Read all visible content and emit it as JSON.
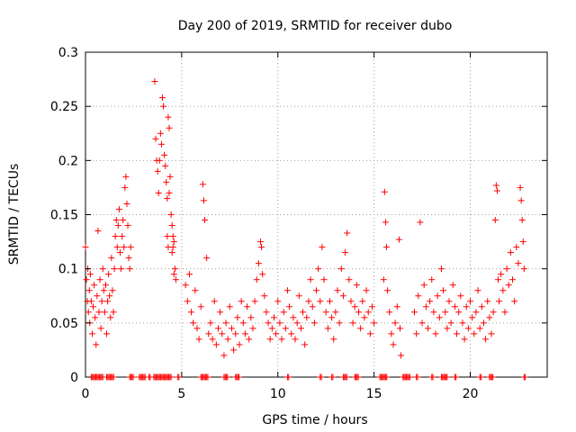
{
  "chart_data": {
    "type": "scatter",
    "title": "Day 200 of 2019, SRMTID for receiver dubo",
    "xlabel": "GPS time / hours",
    "ylabel": "SRMTID / TECUs",
    "xlim": [
      0,
      24
    ],
    "ylim": [
      0,
      0.3
    ],
    "xticks": [
      0,
      5,
      10,
      15,
      20
    ],
    "xtick_labels": [
      "0",
      "5",
      "10",
      "15",
      "20"
    ],
    "yticks": [
      0,
      0.05,
      0.1,
      0.15,
      0.2,
      0.25,
      0.3
    ],
    "ytick_labels": [
      "0",
      "0.05",
      "0.1",
      "0.15",
      "0.2",
      "0.25",
      "0.3"
    ],
    "grid": true,
    "marker": "plus",
    "color": "#ff0000",
    "series": [
      {
        "name": "SRMTID",
        "points": [
          [
            0.0,
            0.12
          ],
          [
            0.05,
            0.09
          ],
          [
            0.1,
            0.07
          ],
          [
            0.12,
            0.1
          ],
          [
            0.15,
            0.06
          ],
          [
            0.2,
            0.08
          ],
          [
            0.22,
            0.05
          ],
          [
            0.25,
            0.095
          ],
          [
            0.3,
            0.07
          ],
          [
            0.35,
            0.04
          ],
          [
            0.4,
            0.065
          ],
          [
            0.45,
            0.085
          ],
          [
            0.5,
            0.055
          ],
          [
            0.55,
            0.03
          ],
          [
            0.6,
            0.075
          ],
          [
            0.65,
            0.135
          ],
          [
            0.7,
            0.06
          ],
          [
            0.75,
            0.09
          ],
          [
            0.8,
            0.045
          ],
          [
            0.85,
            0.07
          ],
          [
            0.9,
            0.1
          ],
          [
            0.95,
            0.08
          ],
          [
            1.0,
            0.06
          ],
          [
            1.05,
            0.085
          ],
          [
            1.1,
            0.04
          ],
          [
            1.15,
            0.07
          ],
          [
            1.2,
            0.095
          ],
          [
            1.25,
            0.075
          ],
          [
            1.3,
            0.055
          ],
          [
            1.35,
            0.11
          ],
          [
            1.4,
            0.08
          ],
          [
            1.45,
            0.06
          ],
          [
            1.5,
            0.1
          ],
          [
            1.55,
            0.13
          ],
          [
            1.6,
            0.145
          ],
          [
            1.65,
            0.12
          ],
          [
            1.7,
            0.14
          ],
          [
            1.75,
            0.155
          ],
          [
            1.8,
            0.115
          ],
          [
            1.85,
            0.1
          ],
          [
            1.9,
            0.13
          ],
          [
            1.95,
            0.145
          ],
          [
            2.0,
            0.12
          ],
          [
            2.05,
            0.175
          ],
          [
            2.1,
            0.185
          ],
          [
            2.15,
            0.16
          ],
          [
            2.2,
            0.14
          ],
          [
            2.25,
            0.11
          ],
          [
            2.3,
            0.1
          ],
          [
            2.35,
            0.12
          ],
          [
            3.6,
            0.273
          ],
          [
            3.65,
            0.22
          ],
          [
            3.7,
            0.2
          ],
          [
            3.75,
            0.19
          ],
          [
            3.8,
            0.17
          ],
          [
            3.85,
            0.2
          ],
          [
            3.9,
            0.225
          ],
          [
            3.95,
            0.215
          ],
          [
            4.0,
            0.258
          ],
          [
            4.05,
            0.25
          ],
          [
            4.1,
            0.205
          ],
          [
            4.15,
            0.195
          ],
          [
            4.2,
            0.18
          ],
          [
            4.25,
            0.165
          ],
          [
            4.3,
            0.24
          ],
          [
            4.35,
            0.23
          ],
          [
            4.4,
            0.185
          ],
          [
            4.45,
            0.15
          ],
          [
            4.5,
            0.14
          ],
          [
            4.55,
            0.13
          ],
          [
            4.6,
            0.125
          ],
          [
            4.65,
            0.1
          ],
          [
            4.7,
            0.09
          ],
          [
            4.3,
            0.12
          ],
          [
            4.25,
            0.13
          ],
          [
            4.35,
            0.17
          ],
          [
            4.5,
            0.115
          ],
          [
            4.55,
            0.12
          ],
          [
            4.6,
            0.095
          ],
          [
            5.2,
            0.085
          ],
          [
            5.3,
            0.07
          ],
          [
            5.4,
            0.095
          ],
          [
            5.5,
            0.06
          ],
          [
            5.6,
            0.05
          ],
          [
            5.7,
            0.08
          ],
          [
            5.8,
            0.045
          ],
          [
            5.9,
            0.035
          ],
          [
            6.0,
            0.065
          ],
          [
            6.1,
            0.178
          ],
          [
            6.15,
            0.163
          ],
          [
            6.2,
            0.145
          ],
          [
            6.3,
            0.11
          ],
          [
            6.4,
            0.04
          ],
          [
            6.5,
            0.05
          ],
          [
            6.6,
            0.035
          ],
          [
            6.7,
            0.07
          ],
          [
            6.8,
            0.03
          ],
          [
            6.9,
            0.045
          ],
          [
            7.0,
            0.06
          ],
          [
            7.1,
            0.04
          ],
          [
            7.2,
            0.02
          ],
          [
            7.3,
            0.05
          ],
          [
            7.4,
            0.035
          ],
          [
            7.5,
            0.065
          ],
          [
            7.6,
            0.045
          ],
          [
            7.7,
            0.025
          ],
          [
            7.8,
            0.04
          ],
          [
            7.9,
            0.055
          ],
          [
            8.0,
            0.03
          ],
          [
            8.1,
            0.07
          ],
          [
            8.2,
            0.05
          ],
          [
            8.3,
            0.04
          ],
          [
            8.4,
            0.065
          ],
          [
            8.5,
            0.035
          ],
          [
            8.6,
            0.055
          ],
          [
            8.7,
            0.045
          ],
          [
            8.8,
            0.07
          ],
          [
            8.9,
            0.09
          ],
          [
            9.0,
            0.105
          ],
          [
            9.1,
            0.125
          ],
          [
            9.15,
            0.12
          ],
          [
            9.2,
            0.095
          ],
          [
            9.3,
            0.075
          ],
          [
            9.4,
            0.06
          ],
          [
            9.5,
            0.05
          ],
          [
            9.6,
            0.035
          ],
          [
            9.7,
            0.045
          ],
          [
            9.8,
            0.055
          ],
          [
            9.9,
            0.04
          ],
          [
            10.0,
            0.07
          ],
          [
            10.1,
            0.05
          ],
          [
            10.2,
            0.035
          ],
          [
            10.3,
            0.06
          ],
          [
            10.4,
            0.045
          ],
          [
            10.5,
            0.08
          ],
          [
            10.6,
            0.065
          ],
          [
            10.7,
            0.04
          ],
          [
            10.8,
            0.055
          ],
          [
            10.9,
            0.035
          ],
          [
            11.0,
            0.05
          ],
          [
            11.1,
            0.075
          ],
          [
            11.2,
            0.045
          ],
          [
            11.3,
            0.06
          ],
          [
            11.4,
            0.03
          ],
          [
            11.5,
            0.055
          ],
          [
            11.6,
            0.07
          ],
          [
            11.7,
            0.09
          ],
          [
            11.8,
            0.065
          ],
          [
            11.9,
            0.05
          ],
          [
            12.0,
            0.08
          ],
          [
            12.1,
            0.1
          ],
          [
            12.2,
            0.07
          ],
          [
            12.3,
            0.12
          ],
          [
            12.4,
            0.09
          ],
          [
            12.5,
            0.06
          ],
          [
            12.6,
            0.045
          ],
          [
            12.7,
            0.07
          ],
          [
            12.8,
            0.055
          ],
          [
            12.9,
            0.035
          ],
          [
            13.0,
            0.06
          ],
          [
            13.1,
            0.08
          ],
          [
            13.2,
            0.05
          ],
          [
            13.3,
            0.1
          ],
          [
            13.4,
            0.075
          ],
          [
            13.5,
            0.115
          ],
          [
            13.6,
            0.133
          ],
          [
            13.7,
            0.09
          ],
          [
            13.8,
            0.07
          ],
          [
            13.9,
            0.05
          ],
          [
            14.0,
            0.065
          ],
          [
            14.1,
            0.085
          ],
          [
            14.2,
            0.06
          ],
          [
            14.3,
            0.045
          ],
          [
            14.4,
            0.07
          ],
          [
            14.5,
            0.055
          ],
          [
            14.6,
            0.08
          ],
          [
            14.7,
            0.06
          ],
          [
            14.8,
            0.04
          ],
          [
            14.9,
            0.065
          ],
          [
            15.0,
            0.05
          ],
          [
            15.5,
            0.09
          ],
          [
            15.55,
            0.171
          ],
          [
            15.6,
            0.143
          ],
          [
            15.65,
            0.12
          ],
          [
            15.7,
            0.08
          ],
          [
            15.8,
            0.06
          ],
          [
            15.9,
            0.04
          ],
          [
            16.0,
            0.03
          ],
          [
            16.1,
            0.05
          ],
          [
            16.2,
            0.065
          ],
          [
            16.3,
            0.127
          ],
          [
            16.35,
            0.045
          ],
          [
            16.4,
            0.02
          ],
          [
            17.1,
            0.06
          ],
          [
            17.2,
            0.04
          ],
          [
            17.3,
            0.075
          ],
          [
            17.4,
            0.143
          ],
          [
            17.5,
            0.05
          ],
          [
            17.6,
            0.085
          ],
          [
            17.7,
            0.065
          ],
          [
            17.8,
            0.045
          ],
          [
            17.9,
            0.07
          ],
          [
            18.0,
            0.09
          ],
          [
            18.1,
            0.06
          ],
          [
            18.2,
            0.04
          ],
          [
            18.3,
            0.075
          ],
          [
            18.4,
            0.055
          ],
          [
            18.5,
            0.1
          ],
          [
            18.6,
            0.08
          ],
          [
            18.7,
            0.06
          ],
          [
            18.8,
            0.045
          ],
          [
            18.9,
            0.07
          ],
          [
            19.0,
            0.05
          ],
          [
            19.1,
            0.085
          ],
          [
            19.2,
            0.065
          ],
          [
            19.3,
            0.04
          ],
          [
            19.4,
            0.06
          ],
          [
            19.5,
            0.075
          ],
          [
            19.6,
            0.05
          ],
          [
            19.7,
            0.035
          ],
          [
            19.8,
            0.065
          ],
          [
            19.9,
            0.045
          ],
          [
            20.0,
            0.07
          ],
          [
            20.1,
            0.055
          ],
          [
            20.2,
            0.04
          ],
          [
            20.3,
            0.06
          ],
          [
            20.4,
            0.08
          ],
          [
            20.5,
            0.045
          ],
          [
            20.6,
            0.065
          ],
          [
            20.7,
            0.05
          ],
          [
            20.8,
            0.035
          ],
          [
            20.9,
            0.07
          ],
          [
            21.0,
            0.055
          ],
          [
            21.1,
            0.04
          ],
          [
            21.2,
            0.06
          ],
          [
            21.3,
            0.145
          ],
          [
            21.35,
            0.177
          ],
          [
            21.4,
            0.172
          ],
          [
            21.45,
            0.09
          ],
          [
            21.5,
            0.07
          ],
          [
            21.6,
            0.095
          ],
          [
            21.7,
            0.08
          ],
          [
            21.8,
            0.06
          ],
          [
            21.9,
            0.1
          ],
          [
            22.0,
            0.085
          ],
          [
            22.1,
            0.115
          ],
          [
            22.2,
            0.09
          ],
          [
            22.3,
            0.07
          ],
          [
            22.4,
            0.12
          ],
          [
            22.5,
            0.105
          ],
          [
            22.6,
            0.175
          ],
          [
            22.65,
            0.163
          ],
          [
            22.7,
            0.145
          ],
          [
            22.75,
            0.125
          ],
          [
            22.8,
            0.1
          ]
        ]
      },
      {
        "name": "zero-baseline",
        "x_ranges": [
          [
            0.3,
            0.9
          ],
          [
            1.1,
            1.5
          ],
          [
            2.3,
            2.5
          ],
          [
            2.8,
            3.1
          ],
          [
            3.3,
            3.4
          ],
          [
            3.55,
            4.5
          ],
          [
            4.8,
            4.9
          ],
          [
            6.0,
            6.4
          ],
          [
            7.2,
            7.4
          ],
          [
            7.8,
            8.0
          ],
          [
            10.5,
            10.6
          ],
          [
            12.2,
            12.3
          ],
          [
            12.8,
            12.9
          ],
          [
            13.4,
            13.6
          ],
          [
            14.0,
            14.2
          ],
          [
            15.3,
            15.7
          ],
          [
            16.5,
            16.9
          ],
          [
            17.2,
            17.3
          ],
          [
            18.0,
            18.1
          ],
          [
            18.5,
            18.8
          ],
          [
            19.2,
            19.3
          ],
          [
            20.5,
            20.6
          ],
          [
            21.0,
            21.2
          ],
          [
            22.8,
            22.9
          ]
        ],
        "y": 0
      }
    ]
  }
}
